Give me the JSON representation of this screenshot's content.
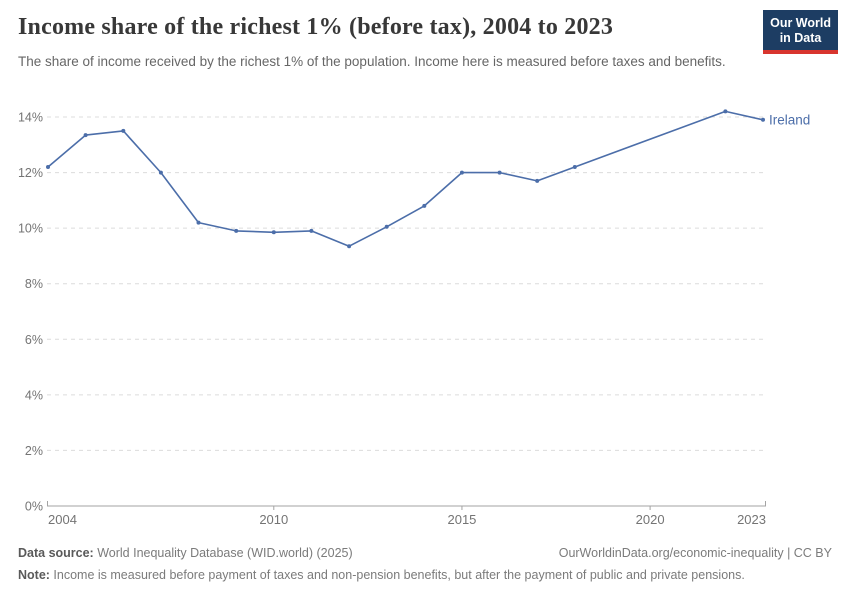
{
  "chart_data": {
    "type": "line",
    "title": "Income share of the richest 1% (before tax), 2004 to 2023",
    "subtitle": "The share of income received by the richest 1% of the population. Income here is measured before taxes and benefits.",
    "xlabel": "",
    "ylabel": "",
    "xlim": [
      2004,
      2023
    ],
    "ylim": [
      0,
      14
    ],
    "x_ticks": [
      2004,
      2010,
      2015,
      2020,
      2023
    ],
    "y_ticks": [
      0,
      2,
      4,
      6,
      8,
      10,
      12,
      14
    ],
    "y_tick_suffix": "%",
    "grid": true,
    "legend_position": "end-of-line-label",
    "series": [
      {
        "name": "Ireland",
        "color": "#4c6ea9",
        "points": [
          [
            2004,
            12.2
          ],
          [
            2005,
            13.35
          ],
          [
            2006,
            13.5
          ],
          [
            2007,
            12.0
          ],
          [
            2008,
            10.2
          ],
          [
            2009,
            9.9
          ],
          [
            2010,
            9.85
          ],
          [
            2011,
            9.9
          ],
          [
            2012,
            9.35
          ],
          [
            2013,
            10.05
          ],
          [
            2014,
            10.8
          ],
          [
            2015,
            12.0
          ],
          [
            2016,
            12.0
          ],
          [
            2017,
            11.7
          ],
          [
            2018,
            12.2
          ],
          [
            2022,
            14.2
          ],
          [
            2023,
            13.9
          ]
        ]
      }
    ]
  },
  "logo": {
    "line1": "Our World",
    "line2": "in Data"
  },
  "footer": {
    "datasource_label": "Data source:",
    "datasource_text": " World Inequality Database (WID.world) (2025)",
    "link_text": "OurWorldinData.org/economic-inequality | CC BY",
    "note_label": "Note:",
    "note_text": " Income is measured before payment of taxes and non-pension benefits, but after the payment of public and private pensions."
  },
  "colors": {
    "line": "#4c6ea9",
    "grid": "#dcdcdc",
    "axis": "#a3a3a3",
    "axis_text": "#747474",
    "title_text": "#383838",
    "subtitle_text": "#666666",
    "logo_bg": "#1d3d63",
    "logo_stripe": "#d8352e"
  }
}
